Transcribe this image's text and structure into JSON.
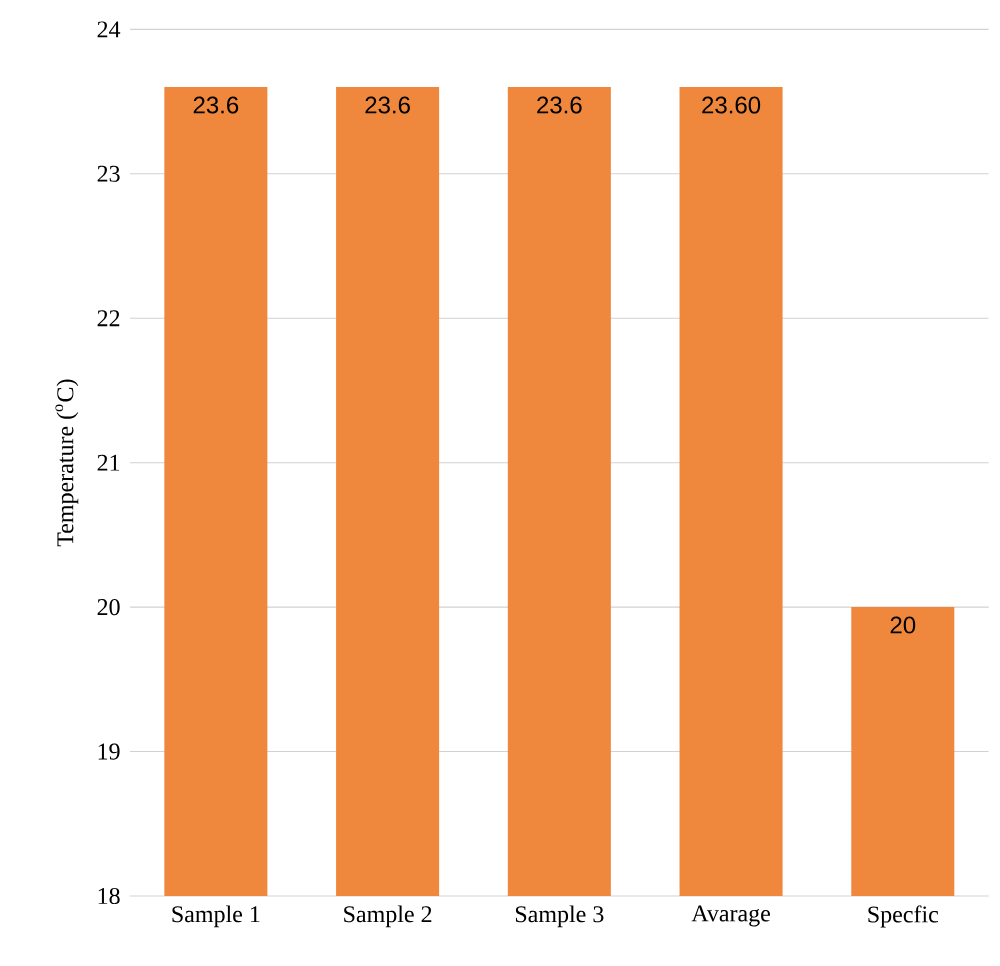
{
  "chart_data": {
    "type": "bar",
    "ylabel": "Temperature ($^{o}$C)",
    "categories": [
      "Sample 1",
      "Sample 2",
      "Sample 3",
      "Avarage",
      "Specfic"
    ],
    "values": [
      23.6,
      23.6,
      23.6,
      23.6,
      20
    ],
    "value_labels": [
      "23.6",
      "23.6",
      "23.6",
      "23.60",
      "20"
    ],
    "color": "#ef873d",
    "ylim": [
      18,
      24
    ],
    "yticks": [
      18,
      19,
      20,
      21,
      22,
      23,
      24
    ],
    "grid": "y"
  }
}
